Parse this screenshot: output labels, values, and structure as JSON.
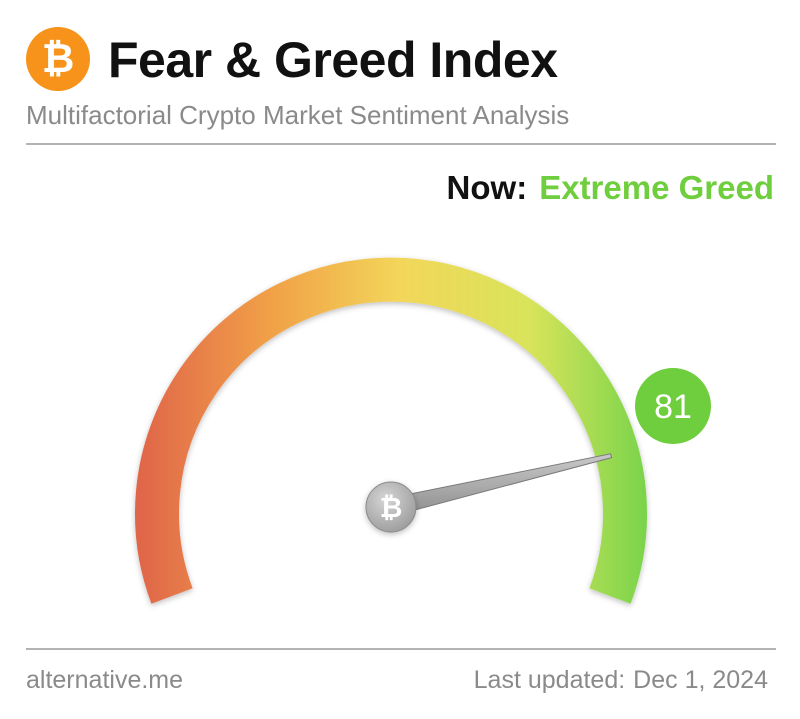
{
  "header": {
    "logo_symbol": "₿",
    "title": "Fear & Greed Index",
    "subtitle": "Multifactorial Crypto Market Sentiment Analysis"
  },
  "status": {
    "now_label": "Now:",
    "sentiment": "Extreme Greed",
    "sentiment_color": "#6fce3d"
  },
  "gauge": {
    "value": 81,
    "value_label": "81",
    "min": 0,
    "max": 100,
    "badge_color": "#6fce3d",
    "needle_hub_symbol": "₿",
    "gradient_colors": [
      "#e0664a",
      "#f1a047",
      "#f3d65a",
      "#d8e45a",
      "#6fd24a"
    ]
  },
  "footer": {
    "source": "alternative.me",
    "updated_label": "Last updated:",
    "updated_date": "Dec 1, 2024"
  }
}
